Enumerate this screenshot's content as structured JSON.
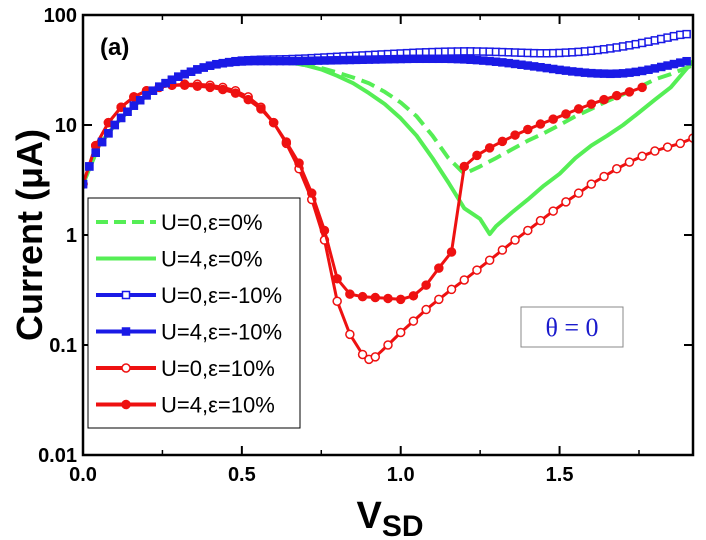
{
  "chart_data": {
    "type": "line",
    "panel_label": "(a)",
    "xlabel": "V",
    "xlabel_sub": "SD",
    "ylabel": "Current (μA)",
    "xlim": [
      0.0,
      1.92
    ],
    "ylim": [
      0.01,
      100
    ],
    "yscale": "log",
    "x_ticks": [
      0.0,
      0.5,
      1.0,
      1.5
    ],
    "x_tick_labels": [
      "0.0",
      "0.5",
      "1.0",
      "1.5"
    ],
    "y_ticks": [
      0.01,
      0.1,
      1,
      10,
      100
    ],
    "y_tick_labels": [
      "0.01",
      "0.1",
      "1",
      "10",
      "100"
    ],
    "annotation": "θ = 0",
    "legend_position": "lower-left",
    "series": [
      {
        "name": "U=0,ε=0%",
        "color": "#55ee55",
        "style": "dashed",
        "marker": "none",
        "x": [
          0.0,
          0.05,
          0.1,
          0.15,
          0.2,
          0.25,
          0.3,
          0.35,
          0.4,
          0.45,
          0.5,
          0.55,
          0.6,
          0.65,
          0.7,
          0.75,
          0.8,
          0.85,
          0.9,
          0.95,
          1.0,
          1.05,
          1.1,
          1.15,
          1.2,
          1.25,
          1.3,
          1.35,
          1.4,
          1.45,
          1.5,
          1.55,
          1.6,
          1.65,
          1.7,
          1.75,
          1.8,
          1.85,
          1.92
        ],
        "y": [
          2.9,
          6.5,
          10,
          14,
          18.5,
          23,
          28,
          31,
          35,
          37,
          38,
          38,
          37.5,
          36.5,
          35,
          33,
          30,
          27,
          24,
          20,
          16,
          12,
          8,
          5,
          3.6,
          4.2,
          5,
          6,
          7.2,
          8.4,
          10,
          12,
          14,
          16.5,
          19,
          22,
          26,
          29,
          35
        ]
      },
      {
        "name": "U=4,ε=0%",
        "color": "#55ee55",
        "style": "solid",
        "marker": "none",
        "x": [
          0.0,
          0.05,
          0.1,
          0.15,
          0.2,
          0.25,
          0.3,
          0.35,
          0.4,
          0.45,
          0.5,
          0.55,
          0.6,
          0.65,
          0.7,
          0.75,
          0.8,
          0.85,
          0.9,
          0.95,
          1.0,
          1.05,
          1.1,
          1.15,
          1.2,
          1.25,
          1.28,
          1.3,
          1.35,
          1.4,
          1.45,
          1.5,
          1.55,
          1.6,
          1.65,
          1.7,
          1.75,
          1.8,
          1.85,
          1.92
        ],
        "y": [
          2.9,
          6.5,
          10,
          14,
          18.5,
          23,
          28,
          31,
          35,
          37,
          38,
          38,
          37.5,
          37,
          35,
          32,
          28,
          24,
          19.5,
          15.5,
          11.5,
          8,
          5,
          3,
          1.75,
          1.4,
          1.02,
          1.2,
          1.6,
          2.1,
          2.8,
          3.6,
          5,
          6.5,
          8,
          10,
          13,
          17,
          22,
          38
        ]
      },
      {
        "name": "U=0,ε=-10%",
        "color": "#1a1ae6",
        "style": "solid",
        "marker": "open-square",
        "x": [
          0.0,
          0.02,
          0.04,
          0.06,
          0.08,
          0.1,
          0.12,
          0.14,
          0.16,
          0.18,
          0.2,
          0.22,
          0.24,
          0.26,
          0.28,
          0.3,
          0.32,
          0.34,
          0.36,
          0.38,
          0.4,
          0.42,
          0.44,
          0.46,
          0.48,
          0.5,
          0.52,
          0.54,
          0.56,
          0.58,
          0.6,
          0.62,
          0.64,
          0.66,
          0.68,
          0.7,
          0.72,
          0.74,
          0.76,
          0.78,
          0.8,
          0.82,
          0.84,
          0.86,
          0.88,
          0.9,
          0.92,
          0.94,
          0.96,
          0.98,
          1.0,
          1.02,
          1.04,
          1.06,
          1.08,
          1.1,
          1.12,
          1.14,
          1.16,
          1.18,
          1.2,
          1.22,
          1.24,
          1.26,
          1.28,
          1.3,
          1.32,
          1.34,
          1.36,
          1.38,
          1.4,
          1.42,
          1.44,
          1.46,
          1.48,
          1.5,
          1.52,
          1.54,
          1.56,
          1.58,
          1.6,
          1.62,
          1.64,
          1.66,
          1.68,
          1.7,
          1.72,
          1.74,
          1.76,
          1.78,
          1.8,
          1.82,
          1.84,
          1.86,
          1.88,
          1.9
        ],
        "y": [
          2.9,
          4.2,
          5.6,
          7,
          8.4,
          10,
          11.6,
          13.2,
          15,
          16.8,
          18.6,
          20.5,
          22.3,
          24,
          25.8,
          27.5,
          29,
          30.5,
          32,
          33.3,
          34.6,
          35.7,
          36.5,
          37.3,
          38,
          38.5,
          38.8,
          39,
          39.2,
          39.3,
          39.4,
          39.5,
          39.6,
          39.8,
          40,
          40.2,
          40.5,
          40.8,
          41.1,
          41.4,
          41.7,
          42,
          42.3,
          42.6,
          42.9,
          43.2,
          43.5,
          43.8,
          44.1,
          44.4,
          44.7,
          45,
          45.3,
          45.6,
          45.8,
          46,
          46.2,
          46.4,
          46.5,
          46.6,
          46.7,
          46.7,
          46.6,
          46.5,
          46.4,
          46.2,
          46,
          45.8,
          45.6,
          45.4,
          45.2,
          45,
          44.9,
          44.9,
          45,
          45.2,
          45.5,
          45.8,
          46.2,
          46.7,
          47.3,
          48,
          48.8,
          49.7,
          50.7,
          51.8,
          53,
          54.3,
          55.7,
          57.2,
          58.8,
          60.5,
          62.3,
          64.2,
          66,
          67
        ]
      },
      {
        "name": "U=4,ε=-10%",
        "color": "#1a1ae6",
        "style": "solid",
        "marker": "filled-square",
        "x": [
          0.0,
          0.02,
          0.04,
          0.06,
          0.08,
          0.1,
          0.12,
          0.14,
          0.16,
          0.18,
          0.2,
          0.22,
          0.24,
          0.26,
          0.28,
          0.3,
          0.32,
          0.34,
          0.36,
          0.38,
          0.4,
          0.42,
          0.44,
          0.46,
          0.48,
          0.5,
          0.52,
          0.54,
          0.56,
          0.58,
          0.6,
          0.62,
          0.64,
          0.66,
          0.68,
          0.7,
          0.72,
          0.74,
          0.76,
          0.78,
          0.8,
          0.82,
          0.84,
          0.86,
          0.88,
          0.9,
          0.92,
          0.94,
          0.96,
          0.98,
          1.0,
          1.02,
          1.04,
          1.06,
          1.08,
          1.1,
          1.12,
          1.14,
          1.16,
          1.18,
          1.2,
          1.22,
          1.24,
          1.26,
          1.28,
          1.3,
          1.32,
          1.34,
          1.36,
          1.38,
          1.4,
          1.42,
          1.44,
          1.46,
          1.48,
          1.5,
          1.52,
          1.54,
          1.56,
          1.58,
          1.6,
          1.62,
          1.64,
          1.66,
          1.68,
          1.7,
          1.72,
          1.74,
          1.76,
          1.78,
          1.8,
          1.82,
          1.84,
          1.86,
          1.88,
          1.9
        ],
        "y": [
          2.9,
          4.2,
          5.6,
          7,
          8.4,
          10,
          11.6,
          13.2,
          15,
          16.8,
          18.6,
          20.5,
          22.3,
          24,
          25.8,
          27.5,
          29,
          30.5,
          32,
          33.3,
          34.6,
          35.6,
          36.4,
          37,
          37.5,
          37.8,
          38,
          38.1,
          38.1,
          38.1,
          38.1,
          38.1,
          38.1,
          38.1,
          38.2,
          38.3,
          38.4,
          38.5,
          38.6,
          38.7,
          38.8,
          38.9,
          39,
          39.1,
          39.2,
          39.3,
          39.4,
          39.5,
          39.6,
          39.7,
          39.8,
          39.9,
          40,
          40,
          40,
          40,
          40,
          40,
          39.9,
          39.7,
          39.5,
          39.2,
          38.9,
          38.5,
          38.1,
          37.6,
          37.1,
          36.5,
          35.9,
          35.3,
          34.7,
          34.1,
          33.5,
          32.9,
          32.3,
          31.7,
          31.2,
          30.7,
          30.3,
          29.9,
          29.6,
          29.4,
          29.3,
          29.2,
          29.3,
          29.5,
          29.9,
          30.4,
          31,
          31.8,
          32.7,
          33.7,
          34.7,
          35.8,
          36.9,
          38
        ]
      },
      {
        "name": "U=0,ε=10%",
        "color": "#ee1111",
        "style": "solid",
        "marker": "open-circle",
        "x": [
          0.0,
          0.04,
          0.08,
          0.12,
          0.16,
          0.2,
          0.24,
          0.28,
          0.32,
          0.36,
          0.4,
          0.44,
          0.48,
          0.52,
          0.56,
          0.6,
          0.64,
          0.68,
          0.72,
          0.76,
          0.8,
          0.84,
          0.88,
          0.9,
          0.92,
          0.96,
          1.0,
          1.04,
          1.08,
          1.12,
          1.16,
          1.2,
          1.24,
          1.28,
          1.32,
          1.36,
          1.4,
          1.44,
          1.48,
          1.52,
          1.56,
          1.6,
          1.64,
          1.68,
          1.72,
          1.76,
          1.8,
          1.84,
          1.88,
          1.92
        ],
        "y": [
          2.9,
          6.5,
          10.5,
          14.5,
          18,
          20.5,
          22,
          23,
          23.5,
          23.5,
          23,
          22,
          20.5,
          18,
          14.5,
          10.5,
          6.8,
          4,
          2.1,
          0.9,
          0.25,
          0.125,
          0.082,
          0.074,
          0.078,
          0.1,
          0.13,
          0.165,
          0.21,
          0.26,
          0.32,
          0.39,
          0.48,
          0.59,
          0.73,
          0.9,
          1.1,
          1.35,
          1.65,
          2,
          2.4,
          2.9,
          3.4,
          4,
          4.6,
          5.2,
          5.8,
          6.3,
          6.8,
          7.6
        ]
      },
      {
        "name": "U=4,ε=10%",
        "color": "#ee1111",
        "style": "solid",
        "marker": "filled-circle",
        "x": [
          0.0,
          0.04,
          0.08,
          0.12,
          0.16,
          0.2,
          0.24,
          0.28,
          0.32,
          0.36,
          0.4,
          0.44,
          0.48,
          0.52,
          0.56,
          0.6,
          0.64,
          0.68,
          0.72,
          0.76,
          0.8,
          0.84,
          0.88,
          0.92,
          0.96,
          1.0,
          1.04,
          1.08,
          1.12,
          1.16,
          1.2,
          1.24,
          1.28,
          1.32,
          1.36,
          1.4,
          1.44,
          1.48,
          1.52,
          1.56,
          1.6,
          1.64,
          1.68,
          1.72,
          1.76
        ],
        "y": [
          2.9,
          6.5,
          10.5,
          14.5,
          18,
          20.5,
          22,
          23,
          23,
          22.5,
          22,
          21,
          19.5,
          17,
          14,
          10.5,
          7,
          4.5,
          2.4,
          1.1,
          0.4,
          0.29,
          0.275,
          0.27,
          0.265,
          0.26,
          0.28,
          0.35,
          0.5,
          0.7,
          4.2,
          5.3,
          6.2,
          7.1,
          8.1,
          9.1,
          10.2,
          11.3,
          12.6,
          14,
          15.5,
          17,
          18.5,
          20,
          22
        ]
      }
    ]
  }
}
